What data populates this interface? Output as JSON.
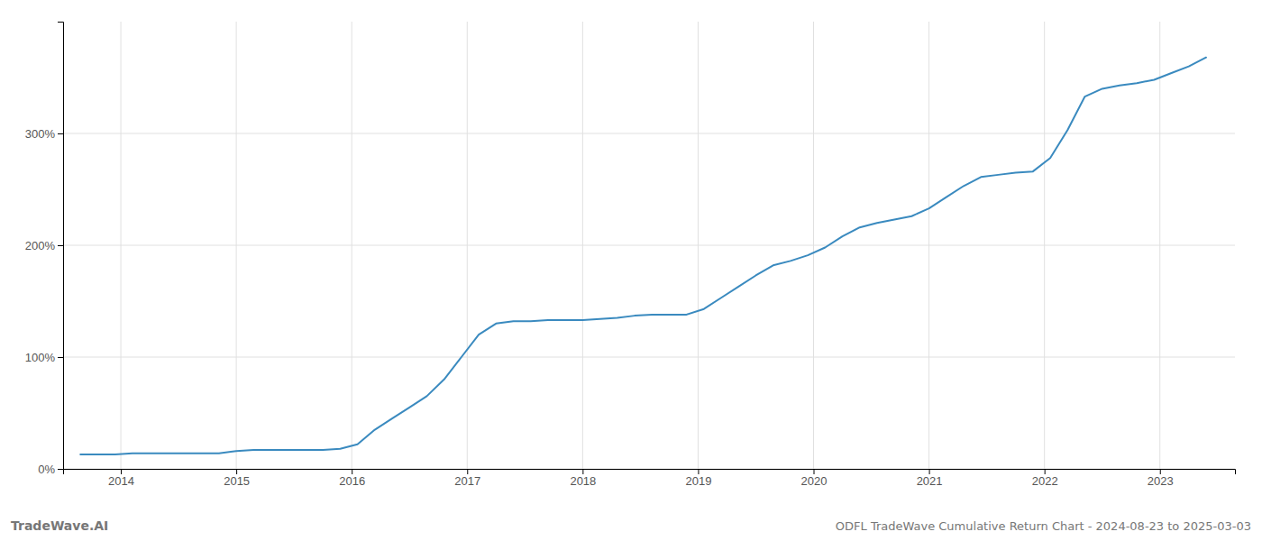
{
  "chart_data": {
    "type": "line",
    "title": "ODFL TradeWave Cumulative Return Chart - 2024-08-23 to 2025-03-03",
    "annotations": [
      "TradeWave.AI"
    ],
    "color": "#3a8abf",
    "grid": true,
    "x": [
      2013.65,
      2013.8,
      2013.95,
      2014.1,
      2014.25,
      2014.4,
      2014.55,
      2014.7,
      2014.85,
      2015.0,
      2015.15,
      2015.3,
      2015.45,
      2015.6,
      2015.75,
      2015.9,
      2016.05,
      2016.2,
      2016.35,
      2016.5,
      2016.65,
      2016.8,
      2016.95,
      2017.1,
      2017.25,
      2017.4,
      2017.55,
      2017.7,
      2017.85,
      2018.0,
      2018.15,
      2018.3,
      2018.45,
      2018.6,
      2018.75,
      2018.9,
      2019.05,
      2019.2,
      2019.35,
      2019.5,
      2019.65,
      2019.8,
      2019.95,
      2020.1,
      2020.25,
      2020.4,
      2020.55,
      2020.7,
      2020.85,
      2021.0,
      2021.15,
      2021.3,
      2021.45,
      2021.6,
      2021.75,
      2021.9,
      2022.05,
      2022.2,
      2022.35,
      2022.5,
      2022.65,
      2022.8,
      2022.95,
      2023.1,
      2023.25,
      2023.4
    ],
    "values": [
      13,
      13,
      13,
      14,
      14,
      14,
      14,
      14,
      14,
      16,
      17,
      17,
      17,
      17,
      17,
      18,
      22,
      35,
      45,
      55,
      65,
      80,
      100,
      120,
      130,
      132,
      132,
      133,
      133,
      133,
      134,
      135,
      137,
      138,
      138,
      138,
      143,
      153,
      163,
      173,
      182,
      186,
      191,
      198,
      208,
      216,
      220,
      223,
      226,
      233,
      243,
      253,
      261,
      263,
      265,
      266,
      278,
      303,
      333,
      340,
      343,
      345,
      348,
      354,
      360,
      368
    ],
    "xlim": [
      2013.5,
      2023.65
    ],
    "xticks": [
      2014,
      2015,
      2016,
      2017,
      2018,
      2019,
      2020,
      2021,
      2022,
      2023
    ],
    "ylim": [
      0,
      400
    ],
    "yticks": [
      {
        "value": 0,
        "label": "0%"
      },
      {
        "value": 100,
        "label": "100%"
      },
      {
        "value": 200,
        "label": "200%"
      },
      {
        "value": 300,
        "label": "300%"
      }
    ]
  }
}
